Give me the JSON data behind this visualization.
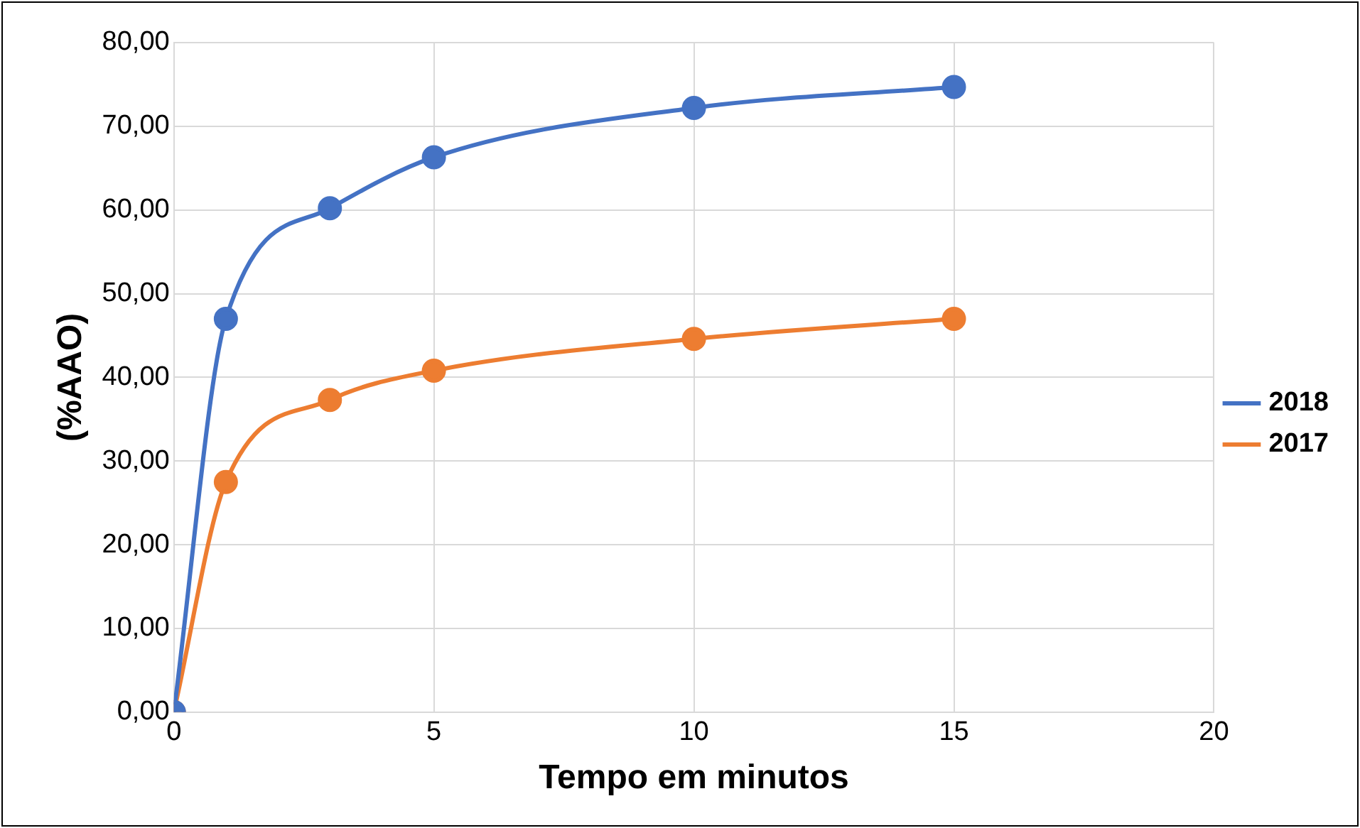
{
  "chart_data": {
    "type": "line",
    "xlabel": "Tempo em minutos",
    "ylabel": "(%AAO)",
    "x": [
      0,
      1,
      3,
      5,
      10,
      15
    ],
    "series": [
      {
        "name": "2018",
        "color": "#4472c4",
        "values": [
          0,
          47,
          60.2,
          66.3,
          72.2,
          74.7
        ]
      },
      {
        "name": "2017",
        "color": "#ed7d31",
        "values": [
          0,
          27.5,
          37.3,
          40.8,
          44.6,
          47
        ]
      }
    ],
    "xlim": [
      0,
      20
    ],
    "xticks": [
      0,
      5,
      10,
      15,
      20
    ],
    "ylim": [
      0,
      80
    ],
    "yticks": [
      {
        "value": 0,
        "label": "0,00"
      },
      {
        "value": 10,
        "label": "10,00"
      },
      {
        "value": 20,
        "label": "20,00"
      },
      {
        "value": 30,
        "label": "30,00"
      },
      {
        "value": 40,
        "label": "40,00"
      },
      {
        "value": 50,
        "label": "50,00"
      },
      {
        "value": 60,
        "label": "60,00"
      },
      {
        "value": 70,
        "label": "70,00"
      },
      {
        "value": 80,
        "label": "80,00"
      }
    ],
    "grid": true,
    "legend": "right",
    "marker": "circle",
    "line_style": "solid"
  }
}
